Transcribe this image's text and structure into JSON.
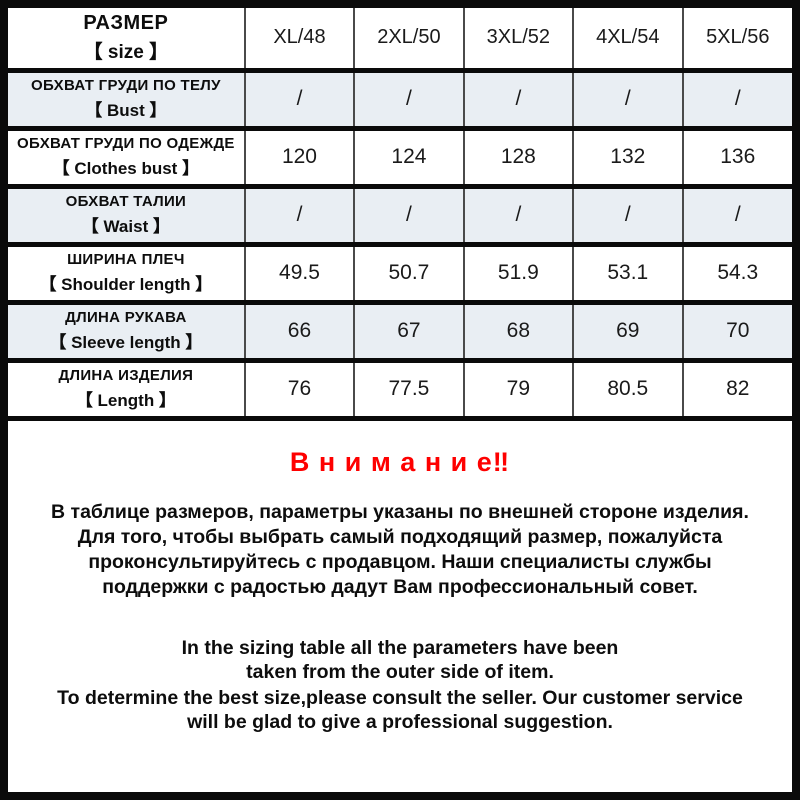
{
  "colors": {
    "frame_border": "#0a0a0a",
    "row_alt_background": "#e9eef3",
    "divider_vertical": "#4a4a4a",
    "notice_accent_red": "#fe0000"
  },
  "table": {
    "header": {
      "label_ru": "РАЗМЕР",
      "label_en": "【 size 】",
      "columns": [
        "XL/48",
        "2XL/50",
        "3XL/52",
        "4XL/54",
        "5XL/56"
      ]
    },
    "rows": [
      {
        "label_ru": "ОБХВАТ ГРУДИ ПО ТЕЛУ",
        "label_en": "【 Bust 】",
        "values": [
          "/",
          "/",
          "/",
          "/",
          "/"
        ]
      },
      {
        "label_ru": "ОБХВАТ ГРУДИ ПО ОДЕЖДЕ",
        "label_en": "【 Clothes bust 】",
        "values": [
          "120",
          "124",
          "128",
          "132",
          "136"
        ]
      },
      {
        "label_ru": "ОБХВАТ ТАЛИИ",
        "label_en": "【 Waist 】",
        "values": [
          "/",
          "/",
          "/",
          "/",
          "/"
        ]
      },
      {
        "label_ru": "ШИРИНА ПЛЕЧ",
        "label_en": "【 Shoulder length 】",
        "values": [
          "49.5",
          "50.7",
          "51.9",
          "53.1",
          "54.3"
        ]
      },
      {
        "label_ru": "ДЛИНА РУКАВА",
        "label_en": "【 Sleeve length 】",
        "values": [
          "66",
          "67",
          "68",
          "69",
          "70"
        ]
      },
      {
        "label_ru": "ДЛИНА ИЗДЕЛИЯ",
        "label_en": "【 Length 】",
        "values": [
          "76",
          "77.5",
          "79",
          "80.5",
          "82"
        ]
      }
    ]
  },
  "notice": {
    "title": "В н и м а н и е‼",
    "ru_lines": [
      "В таблице размеров, параметры указаны по внешней стороне изделия.",
      "Для того, чтобы выбрать самый подходящий размер, пожалуйста",
      "проконсультируйтесь с продавцом. Наши специалисты службы",
      "поддержки с радостью дадут Вам профессиональный совет."
    ],
    "en1_lines": [
      "In the sizing table all the parameters have been",
      "taken from the outer side of item."
    ],
    "en2_lines": [
      "To determine the best size,please consult the seller. Our customer service",
      "will be glad to give a professional suggestion."
    ]
  }
}
